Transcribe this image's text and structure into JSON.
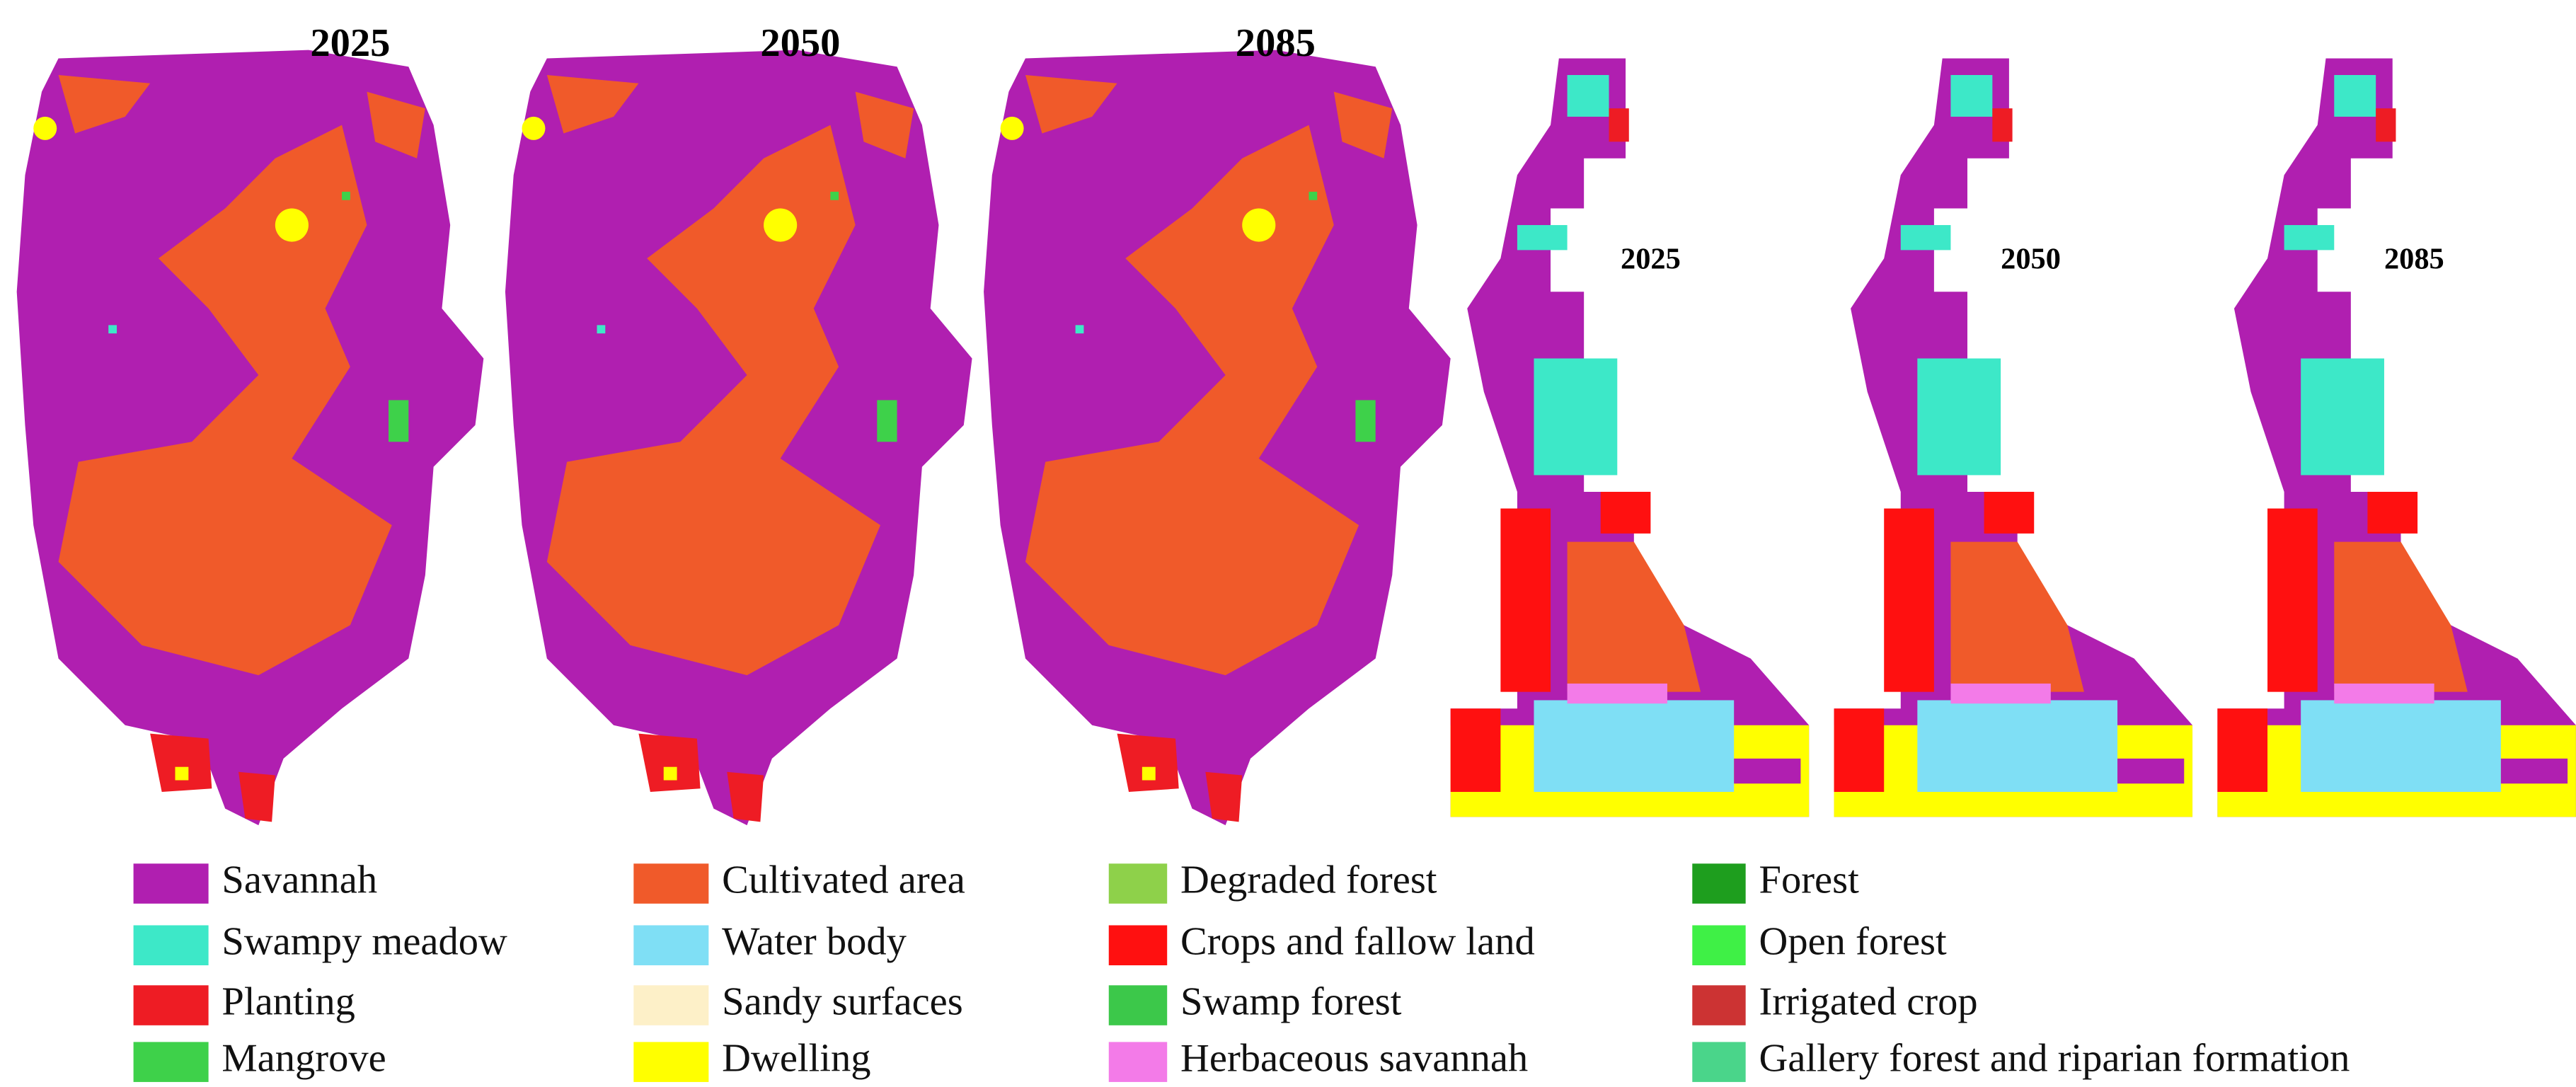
{
  "panels": [
    {
      "label": "2025"
    },
    {
      "label": "2050"
    },
    {
      "label": "2085"
    },
    {
      "label": "2025"
    },
    {
      "label": "2050"
    },
    {
      "label": "2085"
    }
  ],
  "legend": [
    {
      "label": "Savannah",
      "color": "#b01fb0"
    },
    {
      "label": "Swampy meadow",
      "color": "#3de8c8"
    },
    {
      "label": "Planting",
      "color": "#ee1c24"
    },
    {
      "label": "Mangrove",
      "color": "#3ed14a"
    },
    {
      "label": "Cultivated area",
      "color": "#f05a2a"
    },
    {
      "label": "Water body",
      "color": "#7fdff5"
    },
    {
      "label": "Sandy surfaces",
      "color": "#fdf0c8"
    },
    {
      "label": "Dwelling",
      "color": "#ffff00"
    },
    {
      "label": "Degraded forest",
      "color": "#8ed14a"
    },
    {
      "label": "Crops and fallow land",
      "color": "#ff1010"
    },
    {
      "label": "Swamp forest",
      "color": "#3cc84a"
    },
    {
      "label": "Herbaceous savannah",
      "color": "#f37be8"
    },
    {
      "label": "Forest",
      "color": "#1e9e1e"
    },
    {
      "label": "Open forest",
      "color": "#3ff046"
    },
    {
      "label": "Irrigated crop",
      "color": "#cc3333"
    },
    {
      "label": "Gallery forest and riparian formation",
      "color": "#4ad58a"
    }
  ]
}
